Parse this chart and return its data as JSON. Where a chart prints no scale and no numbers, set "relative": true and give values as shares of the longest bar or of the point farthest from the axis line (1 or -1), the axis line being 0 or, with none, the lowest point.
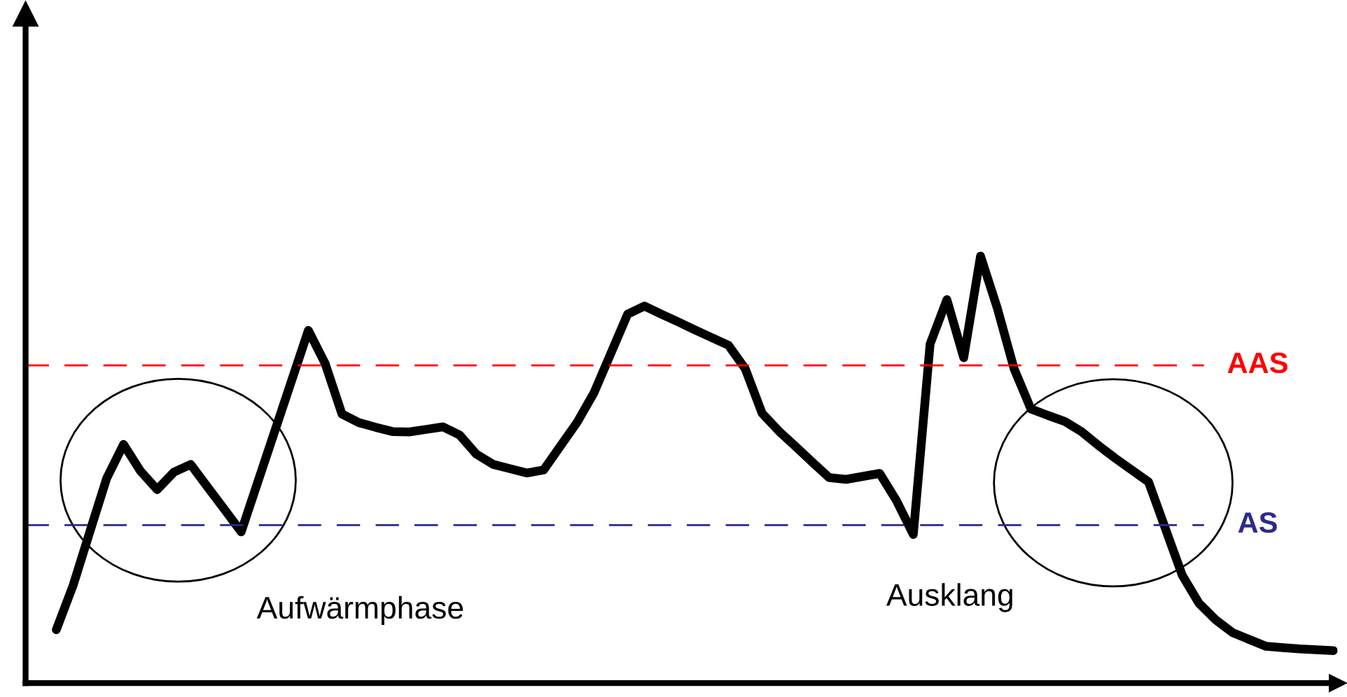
{
  "chart_data": {
    "type": "line",
    "relative": true,
    "color": "#000000",
    "categories": [
      null,
      null,
      null,
      null,
      null,
      null,
      null,
      null,
      null,
      null,
      null,
      null,
      null,
      null,
      null,
      null,
      null,
      null,
      null,
      null,
      null,
      null,
      null,
      null,
      null,
      null,
      null,
      null,
      null,
      null,
      null,
      null,
      null,
      null,
      null,
      null,
      null,
      null,
      null,
      null,
      null,
      null,
      null,
      null,
      null,
      null,
      null,
      null,
      null,
      null,
      null,
      null,
      null,
      null,
      null,
      null,
      null,
      null,
      null,
      null,
      null,
      null,
      null,
      null,
      null,
      null,
      null,
      null,
      null,
      null,
      null,
      null,
      null,
      null,
      null,
      null,
      null
    ],
    "values": [
      0.125,
      0.229,
      0.355,
      0.48,
      0.559,
      0.497,
      0.453,
      0.494,
      0.512,
      0.459,
      0.407,
      0.354,
      0.472,
      0.59,
      0.708,
      0.826,
      0.748,
      0.63,
      0.61,
      0.599,
      0.589,
      0.588,
      0.594,
      0.6,
      0.581,
      0.536,
      0.512,
      0.502,
      0.492,
      0.499,
      0.555,
      0.611,
      0.68,
      0.772,
      0.864,
      0.883,
      0.864,
      0.846,
      0.827,
      0.809,
      0.791,
      0.736,
      0.632,
      0.59,
      0.554,
      0.517,
      0.481,
      0.477,
      0.484,
      0.491,
      0.427,
      0.348,
      0.794,
      0.898,
      0.762,
      1.0,
      0.878,
      0.736,
      0.642,
      0.627,
      0.613,
      0.589,
      0.557,
      0.527,
      0.499,
      0.471,
      0.362,
      0.253,
      0.187,
      0.148,
      0.118,
      0.102,
      0.086,
      0.083,
      0.08,
      0.078,
      0.076
    ],
    "ref_lines": [
      {
        "axis": "y",
        "value": 0.744,
        "label": "AAS",
        "color": "#ff0000",
        "line_style": "dashed"
      },
      {
        "axis": "y",
        "value": 0.37,
        "label": "AS",
        "color": "#2b2b8c",
        "line_style": "dashed"
      }
    ],
    "annotations": [
      "Aufwärmphase",
      "Ausklang"
    ],
    "legend": false,
    "marker": "none",
    "line_style": "solid"
  }
}
